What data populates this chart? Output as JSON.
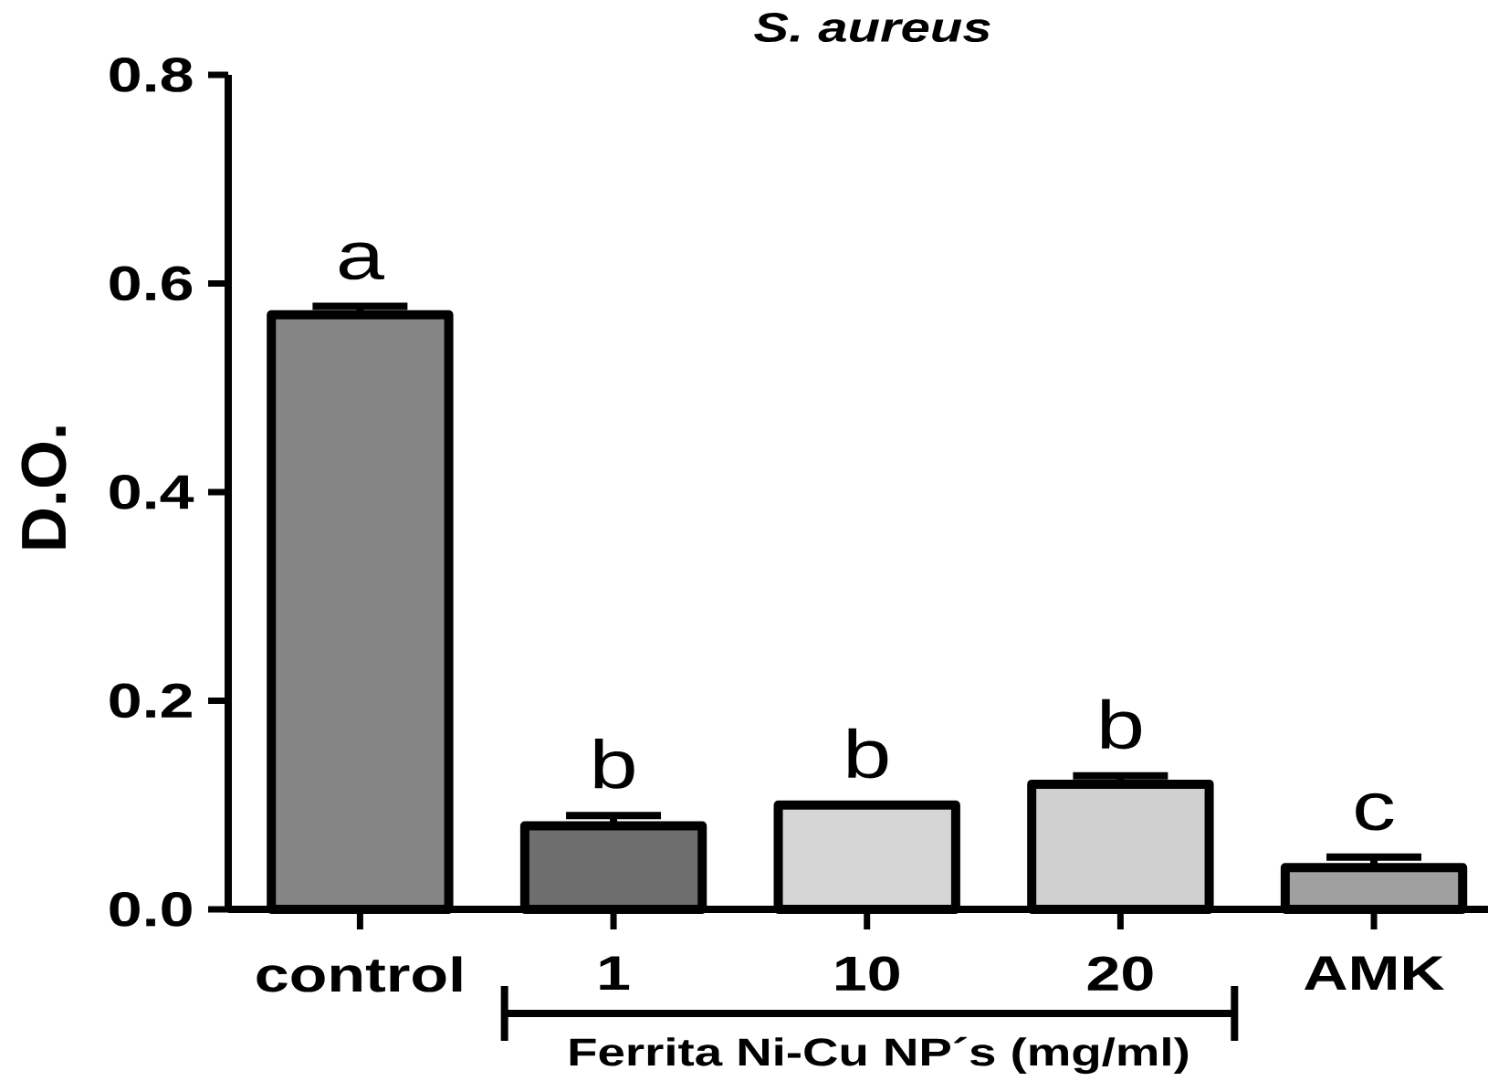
{
  "chart_data": {
    "type": "bar",
    "title": "S. aureus",
    "ylabel": "D.O.",
    "categories": [
      "control",
      "1",
      "10",
      "20",
      "AMK"
    ],
    "values": [
      0.57,
      0.08,
      0.1,
      0.12,
      0.04
    ],
    "errors": [
      [
        0.57,
        0.578
      ],
      [
        0.08,
        0.09
      ],
      null,
      [
        0.12,
        0.128
      ],
      [
        0.04,
        0.05
      ]
    ],
    "colors": [
      "#858585",
      "#6e6e6e",
      "#d6d6d6",
      "#cfcfcf",
      "#a0a0a0"
    ],
    "ylim": [
      0,
      0.8
    ],
    "yticks": [
      {
        "value": 0,
        "label": "0.0"
      },
      0.2,
      0.4,
      0.6,
      0.8
    ],
    "annotations": [
      "a",
      "b",
      "b",
      "b",
      "c",
      "Ferrita Ni-Cu NP´s (mg/ml)"
    ]
  }
}
